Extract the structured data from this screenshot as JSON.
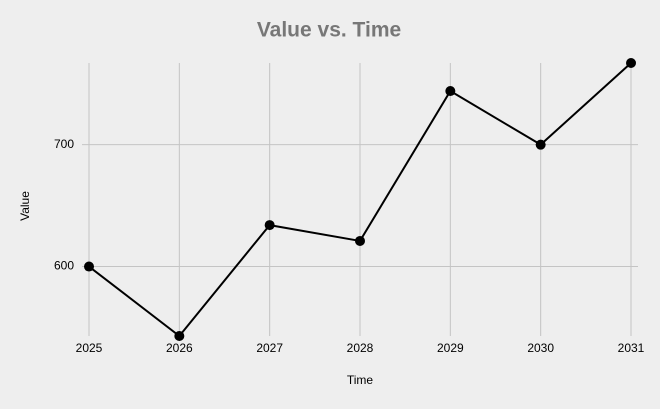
{
  "chart_data": {
    "type": "line",
    "title": "Value vs. Time",
    "x_label": "Time",
    "y_label": "Value",
    "x": [
      2025,
      2026,
      2027,
      2028,
      2029,
      2030,
      2031
    ],
    "series": [
      {
        "name": "Value",
        "color": "#000000",
        "values": [
          600,
          543,
          634,
          621,
          744,
          700,
          767
        ]
      }
    ],
    "xlim": [
      2025,
      2031
    ],
    "xticks": [
      2025,
      2026,
      2027,
      2028,
      2029,
      2030,
      2031
    ],
    "ylim": [
      543,
      767
    ],
    "yticks": [
      600,
      700
    ],
    "grid": true
  }
}
